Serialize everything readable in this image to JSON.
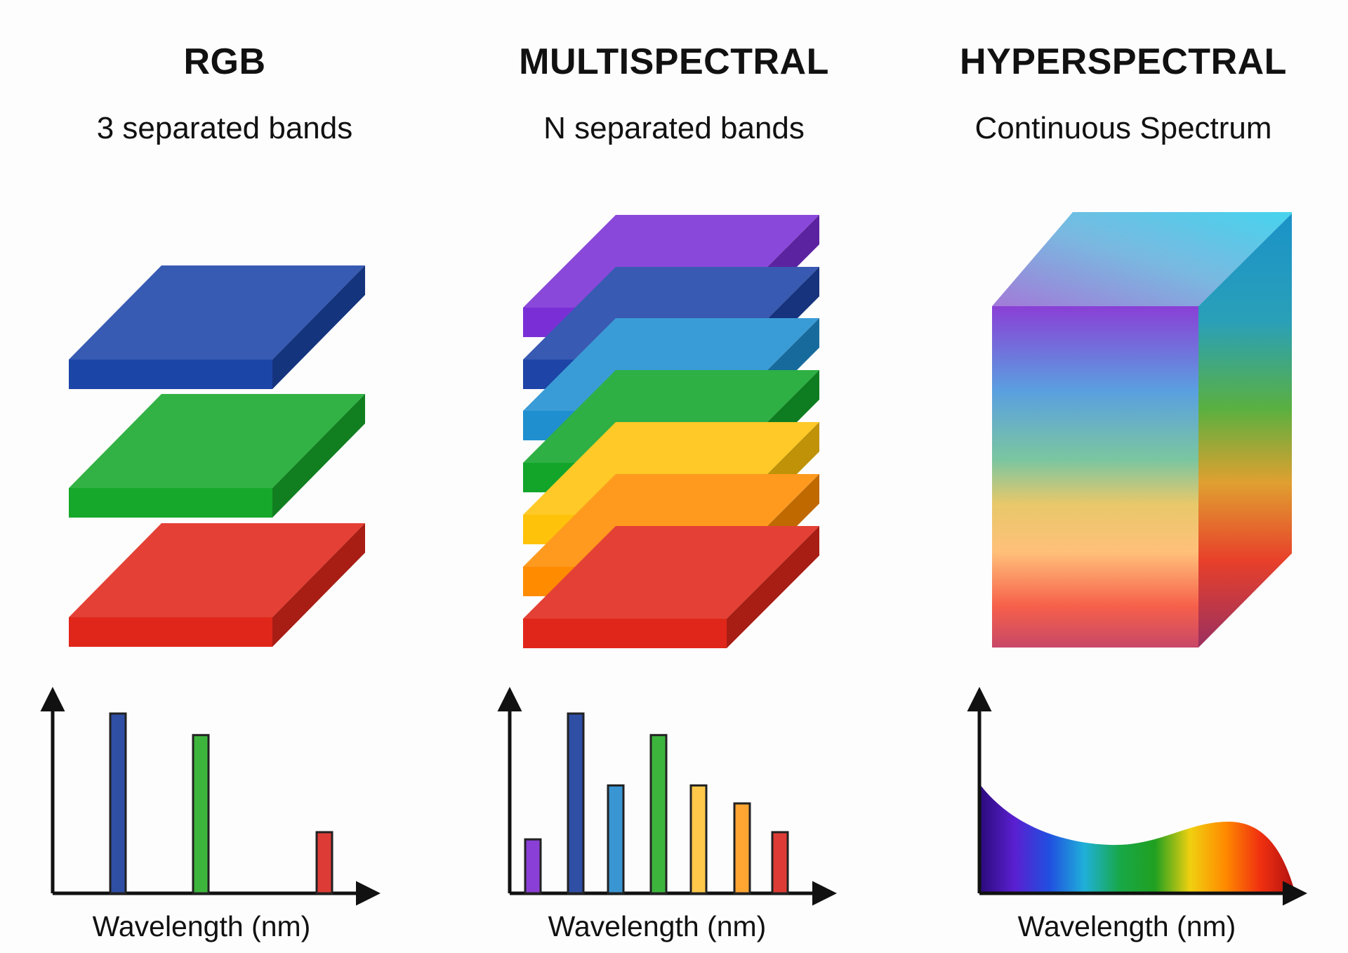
{
  "panels": [
    {
      "id": "rgb",
      "title": "RGB",
      "subtitle": "3 separated bands",
      "axis_label": "Wavelength (nm)",
      "layers": [
        "#1c45a8",
        "#16a82a",
        "#e0261a"
      ],
      "bars": [
        {
          "color": "#2f4fa5",
          "value": 1.0
        },
        {
          "color": "#3db53d",
          "value": 0.88
        },
        {
          "color": "#dd3c36",
          "value": 0.34
        }
      ]
    },
    {
      "id": "multispectral",
      "title": "MULTISPECTRAL",
      "subtitle": "N separated bands",
      "axis_label": "Wavelength (nm)",
      "layers": [
        "#7a2fd6",
        "#1e44a8",
        "#1f8fd0",
        "#12a52a",
        "#ffc20a",
        "#ff8c00",
        "#e0261a"
      ],
      "bars": [
        {
          "color": "#8a3fd6",
          "value": 0.3
        },
        {
          "color": "#2f4fa5",
          "value": 1.0
        },
        {
          "color": "#3a96d2",
          "value": 0.6
        },
        {
          "color": "#3db53d",
          "value": 0.88
        },
        {
          "color": "#ffc84a",
          "value": 0.6
        },
        {
          "color": "#ffa532",
          "value": 0.5
        },
        {
          "color": "#dd3c36",
          "value": 0.34
        }
      ]
    },
    {
      "id": "hyperspectral",
      "title": "HYPERSPECTRAL",
      "subtitle": "Continuous Spectrum",
      "axis_label": "Wavelength (nm)",
      "spectrum_colors": [
        "#2a0a7a",
        "#5a1fd0",
        "#2050e0",
        "#1fb0d8",
        "#18a848",
        "#20a020",
        "#f0d010",
        "#ff8a00",
        "#f03010",
        "#b01010"
      ]
    }
  ]
}
